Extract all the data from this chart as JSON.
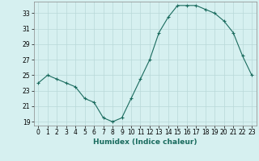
{
  "x": [
    0,
    1,
    2,
    3,
    4,
    5,
    6,
    7,
    8,
    9,
    10,
    11,
    12,
    13,
    14,
    15,
    16,
    17,
    18,
    19,
    20,
    21,
    22,
    23
  ],
  "y": [
    24.0,
    25.0,
    24.5,
    24.0,
    23.5,
    22.0,
    21.5,
    19.5,
    19.0,
    19.5,
    22.0,
    24.5,
    27.0,
    30.5,
    32.5,
    34.0,
    34.0,
    34.0,
    33.5,
    33.0,
    32.0,
    30.5,
    27.5,
    25.0
  ],
  "line_color": "#1a6b5e",
  "marker": "+",
  "marker_size": 3,
  "bg_color": "#d6f0f0",
  "grid_color": "#b8d8d8",
  "xlabel": "Humidex (Indice chaleur)",
  "xlim": [
    -0.5,
    23.5
  ],
  "ylim": [
    18.5,
    34.5
  ],
  "yticks": [
    19,
    21,
    23,
    25,
    27,
    29,
    31,
    33
  ],
  "xticks": [
    0,
    1,
    2,
    3,
    4,
    5,
    6,
    7,
    8,
    9,
    10,
    11,
    12,
    13,
    14,
    15,
    16,
    17,
    18,
    19,
    20,
    21,
    22,
    23
  ],
  "tick_fontsize": 5.5,
  "xlabel_fontsize": 6.5
}
